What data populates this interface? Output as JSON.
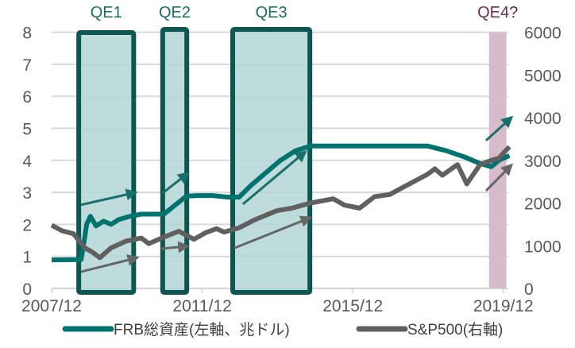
{
  "chart_data": {
    "type": "line",
    "title": "",
    "x_ticks": [
      "2007/12",
      "2011/12",
      "2015/12",
      "2019/12"
    ],
    "x_range": [
      2007.92,
      2020.1
    ],
    "y_left": {
      "ticks": [
        "0",
        "1",
        "2",
        "3",
        "4",
        "5",
        "6",
        "7",
        "8"
      ],
      "range": [
        0,
        8
      ]
    },
    "y_right": {
      "ticks": [
        "0",
        "1000",
        "2000",
        "3000",
        "4000",
        "5000",
        "6000"
      ],
      "range": [
        0,
        6000
      ]
    },
    "grid": true,
    "legend_position": "bottom",
    "series": [
      {
        "name": "FRB総資産(左軸、兆ドル)",
        "axis": "left",
        "color": "#00736f",
        "points": [
          [
            2007.92,
            0.89
          ],
          [
            2008.7,
            0.9
          ],
          [
            2008.75,
            1.2
          ],
          [
            2008.85,
            2.0
          ],
          [
            2008.95,
            2.25
          ],
          [
            2009.1,
            1.95
          ],
          [
            2009.3,
            2.1
          ],
          [
            2009.5,
            2.0
          ],
          [
            2009.7,
            2.15
          ],
          [
            2010.0,
            2.25
          ],
          [
            2010.3,
            2.32
          ],
          [
            2010.9,
            2.32
          ],
          [
            2011.2,
            2.6
          ],
          [
            2011.5,
            2.88
          ],
          [
            2011.8,
            2.9
          ],
          [
            2012.2,
            2.9
          ],
          [
            2012.6,
            2.85
          ],
          [
            2012.9,
            2.85
          ],
          [
            2013.2,
            3.2
          ],
          [
            2013.6,
            3.6
          ],
          [
            2014.0,
            4.0
          ],
          [
            2014.4,
            4.3
          ],
          [
            2014.8,
            4.45
          ],
          [
            2016.0,
            4.45
          ],
          [
            2017.9,
            4.45
          ],
          [
            2018.4,
            4.3
          ],
          [
            2018.9,
            4.1
          ],
          [
            2019.3,
            3.9
          ],
          [
            2019.6,
            3.8
          ],
          [
            2019.8,
            4.0
          ],
          [
            2020.08,
            4.15
          ]
        ]
      },
      {
        "name": "S&P500(右軸)",
        "axis": "right",
        "color": "#606060",
        "points": [
          [
            2007.92,
            1480
          ],
          [
            2008.2,
            1350
          ],
          [
            2008.5,
            1280
          ],
          [
            2008.8,
            950
          ],
          [
            2009.0,
            850
          ],
          [
            2009.2,
            720
          ],
          [
            2009.5,
            950
          ],
          [
            2009.9,
            1110
          ],
          [
            2010.3,
            1180
          ],
          [
            2010.5,
            1050
          ],
          [
            2010.9,
            1200
          ],
          [
            2011.3,
            1340
          ],
          [
            2011.7,
            1150
          ],
          [
            2012.0,
            1300
          ],
          [
            2012.3,
            1400
          ],
          [
            2012.5,
            1320
          ],
          [
            2012.9,
            1420
          ],
          [
            2013.3,
            1600
          ],
          [
            2013.9,
            1820
          ],
          [
            2014.3,
            1880
          ],
          [
            2014.8,
            2000
          ],
          [
            2015.4,
            2100
          ],
          [
            2015.7,
            1950
          ],
          [
            2016.1,
            1880
          ],
          [
            2016.5,
            2150
          ],
          [
            2016.9,
            2200
          ],
          [
            2017.3,
            2390
          ],
          [
            2017.9,
            2670
          ],
          [
            2018.1,
            2800
          ],
          [
            2018.3,
            2650
          ],
          [
            2018.7,
            2900
          ],
          [
            2018.95,
            2450
          ],
          [
            2019.3,
            2900
          ],
          [
            2019.6,
            3000
          ],
          [
            2019.8,
            3050
          ],
          [
            2020.08,
            3320
          ]
        ]
      }
    ],
    "periods": [
      {
        "label": "QE1",
        "start": 2008.64,
        "end": 2010.1,
        "style": "box",
        "color": "#0d5652"
      },
      {
        "label": "QE2",
        "start": 2010.87,
        "end": 2011.51,
        "style": "box",
        "color": "#0d5652"
      },
      {
        "label": "QE3",
        "start": 2012.73,
        "end": 2014.78,
        "style": "box",
        "color": "#0d5652"
      },
      {
        "label": "QE4?",
        "start": 2019.54,
        "end": 2020.0,
        "style": "shade",
        "color": "#6b2a4a"
      }
    ],
    "arrows": [
      {
        "series": "FRB",
        "from": [
          2008.7,
          2.61
        ],
        "to": [
          2010.09,
          2.98
        ]
      },
      {
        "series": "FRB",
        "from": [
          2010.87,
          2.98
        ],
        "to": [
          2011.49,
          3.55
        ]
      },
      {
        "series": "FRB",
        "from": [
          2013.0,
          2.63
        ],
        "to": [
          2014.61,
          4.22
        ]
      },
      {
        "series": "FRB",
        "from": [
          2019.46,
          4.62
        ],
        "to": [
          2020.09,
          5.29
        ]
      },
      {
        "series": "S&P500",
        "from": [
          2008.7,
          390
        ],
        "to": [
          2010.13,
          705
        ]
      },
      {
        "series": "S&P500",
        "from": [
          2010.83,
          930
        ],
        "to": [
          2011.47,
          983
        ]
      },
      {
        "series": "S&P500",
        "from": [
          2012.77,
          945
        ],
        "to": [
          2014.73,
          1635
        ]
      },
      {
        "series": "S&P500",
        "from": [
          2019.46,
          2288
        ],
        "to": [
          2020.09,
          2850
        ]
      }
    ]
  }
}
